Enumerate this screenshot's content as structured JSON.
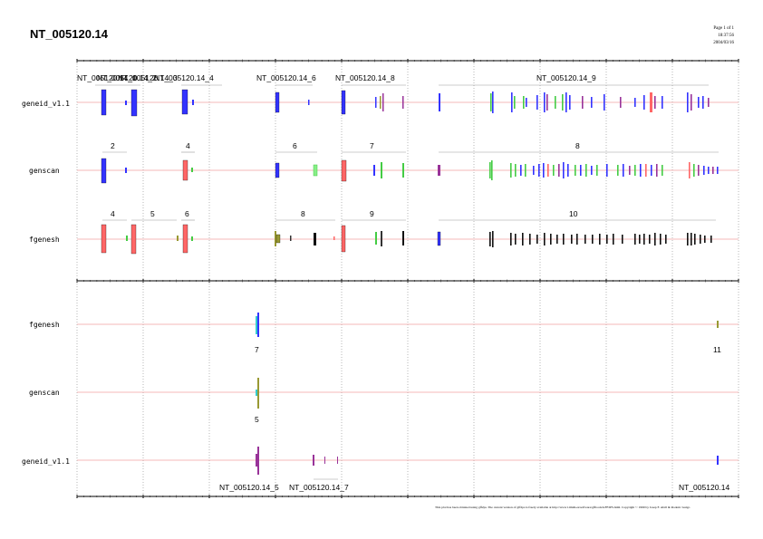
{
  "header": {
    "title": "NT_005120.14",
    "page": "Page 1 of 1",
    "time": "18:37:56",
    "date": "2004/03/16"
  },
  "footer": {
    "note": "This plot has been obtained using gff2ps. The current version of gff2ps is freely available at http://www1.imim.es/software/gfftools/GFF2PS.html. Copyright © 1999 by Josep F. Abril & Roderic Guigo"
  },
  "tracks": {
    "upper": [
      "geneid_v1.1",
      "genscan",
      "fgenesh"
    ],
    "lower": [
      "fgenesh",
      "genscan",
      "geneid_v1.1"
    ]
  },
  "colors": {
    "line": "#f0a0a0",
    "blue": "#3333ff",
    "red": "#ff6666",
    "green": "#44cc44",
    "purple": "#993399",
    "olive": "#999933",
    "black": "#111111",
    "cyan": "#33cccc"
  },
  "upper": {
    "geneid_labels": [
      "NT_005120.14_1",
      "NT_005120.14_2",
      "NT_005120.14_3",
      "NT_005120.14_4",
      "NT_005120.14_6",
      "NT_005120.14_8",
      "NT_005120.14_9"
    ],
    "genscan_labels": [
      "2",
      "4",
      "6",
      "7",
      "8"
    ],
    "fgenesh_labels": [
      "4",
      "5",
      "6",
      "8",
      "9",
      "10"
    ]
  },
  "lower": {
    "fgenesh_labels": [
      "7",
      "11"
    ],
    "genscan_labels": [
      "5"
    ],
    "geneid_labels": [
      "NT_005120.14_5",
      "NT_005120.14_7",
      "NT_005120.14"
    ]
  }
}
